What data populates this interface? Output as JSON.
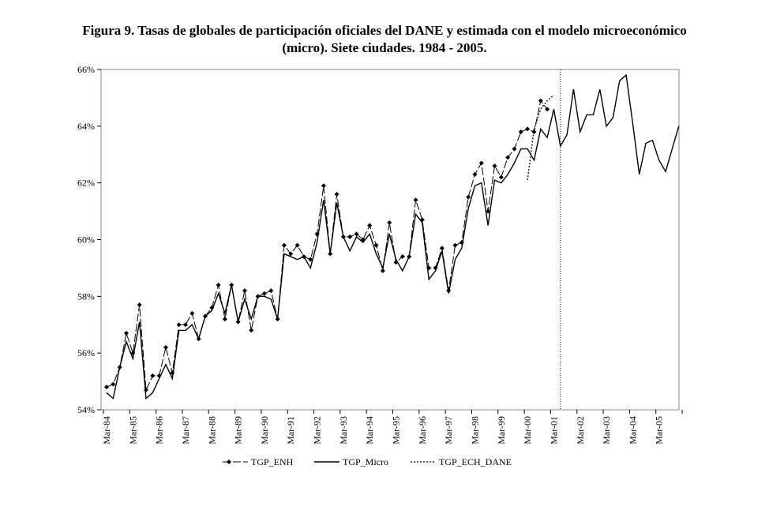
{
  "chart_data": {
    "type": "line",
    "title": "Figura 9. Tasas de globales de participación oficiales del DANE y estimada con el modelo microeconómico (micro). Siete ciudades. 1984 - 2005.",
    "title_lines": [
      "Figura 9. Tasas de globales de participación oficiales del DANE y estimada con el modelo microeconómico",
      "(micro). Siete ciudades. 1984 - 2005."
    ],
    "xlabel": "",
    "ylabel": "",
    "x_start": "Mar-84",
    "x_frequency": "quarterly",
    "x_tick_labels": [
      "Mar-84",
      "Mar-85",
      "Mar-86",
      "Mar-87",
      "Mar-88",
      "Mar-89",
      "Mar-90",
      "Mar-91",
      "Mar-92",
      "Mar-93",
      "Mar-94",
      "Mar-95",
      "Mar-96",
      "Mar-97",
      "Mar-98",
      "Mar-99",
      "Mar-00",
      "Mar-01",
      "Mar-02",
      "Mar-03",
      "Mar-04",
      "Mar-05"
    ],
    "y_tick_labels": [
      "54%",
      "56%",
      "58%",
      "60%",
      "62%",
      "64%",
      "66%"
    ],
    "ylim": [
      54,
      66
    ],
    "grid": false,
    "legend_position": "bottom",
    "vertical_marker": "Jun-01",
    "series": [
      {
        "name": "TGP_ENH",
        "style": "dashed with diamond markers",
        "values": [
          54.8,
          54.9,
          55.5,
          56.7,
          56.0,
          57.7,
          54.7,
          55.2,
          55.2,
          56.2,
          55.3,
          57.0,
          57.0,
          57.4,
          56.5,
          57.3,
          57.6,
          58.4,
          57.2,
          58.4,
          57.1,
          58.2,
          56.8,
          58.0,
          58.1,
          58.2,
          57.2,
          59.8,
          59.5,
          59.8,
          59.4,
          59.3,
          60.2,
          61.9,
          59.5,
          61.6,
          60.1,
          60.1,
          60.2,
          60.0,
          60.5,
          59.8,
          58.9,
          60.6,
          59.2,
          59.4,
          59.4,
          61.4,
          60.7,
          59.0,
          59.0,
          59.7,
          58.2,
          59.8,
          59.9,
          61.5,
          62.3,
          62.7,
          61.0,
          62.6,
          62.2,
          62.9,
          63.2,
          63.8,
          63.9,
          63.8,
          64.9,
          64.6
        ]
      },
      {
        "name": "TGP_Micro",
        "style": "solid",
        "values": [
          54.6,
          54.4,
          55.5,
          56.4,
          55.8,
          57.1,
          54.4,
          54.6,
          55.1,
          55.6,
          55.1,
          56.8,
          56.8,
          57.0,
          56.5,
          57.3,
          57.5,
          58.1,
          57.4,
          58.4,
          57.1,
          57.9,
          57.2,
          58.0,
          58.0,
          57.9,
          57.2,
          59.5,
          59.4,
          59.3,
          59.4,
          59.0,
          59.9,
          61.4,
          59.5,
          61.3,
          60.1,
          59.6,
          60.1,
          59.9,
          60.2,
          59.5,
          59.0,
          60.2,
          59.3,
          58.9,
          59.4,
          60.9,
          60.6,
          58.6,
          58.9,
          59.6,
          58.1,
          59.3,
          59.7,
          61.1,
          61.9,
          62.0,
          60.5,
          62.1,
          62.0,
          62.3,
          62.7,
          63.2,
          63.2,
          62.8,
          63.9,
          63.6,
          64.6,
          63.3,
          63.7,
          65.3,
          63.8,
          64.4,
          64.4,
          65.3,
          64.0,
          64.3,
          65.6,
          65.8,
          64.1,
          62.3,
          63.4,
          63.5,
          62.8,
          62.4,
          63.2,
          64.0
        ]
      },
      {
        "name": "TGP_ECH_DANE",
        "style": "dotted",
        "start_index": 64,
        "values": [
          62.1,
          63.9,
          64.6,
          64.9,
          65.1
        ]
      }
    ]
  }
}
